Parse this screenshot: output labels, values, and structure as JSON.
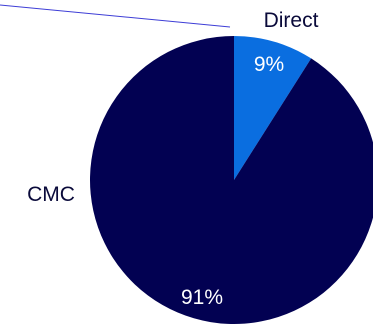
{
  "chart_data": {
    "type": "pie",
    "categories": [
      "Direct",
      "CMC"
    ],
    "values": [
      9,
      91
    ],
    "data_labels": [
      "9%",
      "91%"
    ],
    "colors": [
      "#0a6ee0",
      "#020152"
    ],
    "label_color": "#ffffff",
    "category_label_color": "#0a0a3a",
    "leader_line_color": "#3d3dd6",
    "start": "12 o'clock",
    "direction": "clockwise"
  }
}
